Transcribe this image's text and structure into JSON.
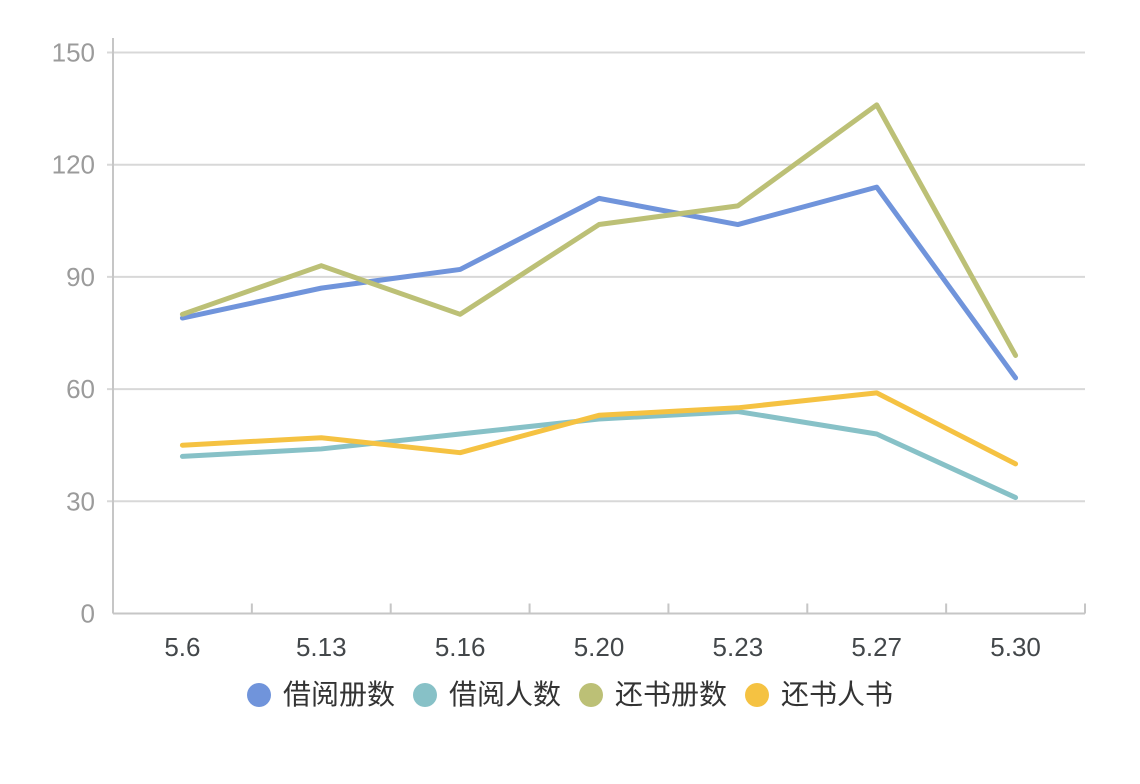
{
  "page": {
    "background": "#ffffff"
  },
  "chart_data": {
    "type": "line",
    "title": "",
    "categories": [
      "5.6",
      "5.13",
      "5.16",
      "5.20",
      "5.23",
      "5.27",
      "5.30"
    ],
    "series": [
      {
        "name": "借阅册数",
        "color": "#7094db",
        "values": [
          79,
          87,
          92,
          111,
          104,
          114,
          63
        ]
      },
      {
        "name": "借阅人数",
        "color": "#87c1c7",
        "values": [
          42,
          44,
          48,
          52,
          54,
          48,
          31
        ]
      },
      {
        "name": "还书册数",
        "color": "#bcc076",
        "values": [
          80,
          93,
          80,
          104,
          109,
          136,
          69
        ]
      },
      {
        "name": "还书人书",
        "color": "#f5c242",
        "values": [
          45,
          47,
          43,
          53,
          55,
          59,
          40
        ]
      }
    ],
    "ylim": [
      0,
      150
    ],
    "yticks": [
      0,
      30,
      60,
      90,
      120,
      150
    ],
    "grid": true,
    "legend_position": "bottom",
    "xlabel": "",
    "ylabel": "",
    "colors": {
      "axis": "#c6c6c6",
      "gridline": "#d8d8d8",
      "y_tick_label": "#9b9b9b",
      "x_tick_label": "#43474a",
      "legend_text": "#333333"
    }
  }
}
